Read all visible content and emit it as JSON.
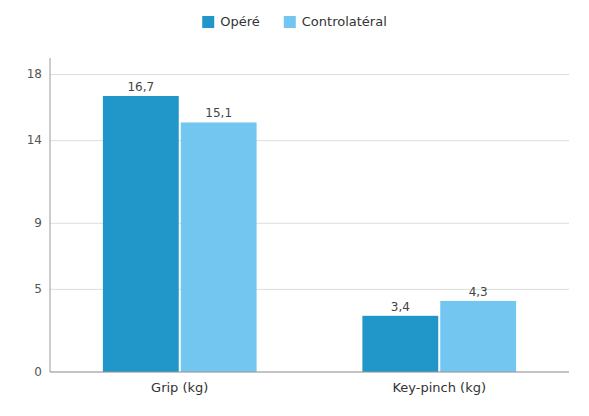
{
  "chart_data": {
    "type": "bar",
    "categories": [
      "Grip (kg)",
      "Key-pinch (kg)"
    ],
    "series": [
      {
        "name": "Opéré",
        "color": "#2196C8",
        "values": [
          16.7,
          3.4
        ],
        "value_labels": [
          "16,7",
          "3,4"
        ]
      },
      {
        "name": "Controlatéral",
        "color": "#73C6F0",
        "values": [
          15.1,
          4.3
        ],
        "value_labels": [
          "15,1",
          "4,3"
        ]
      }
    ],
    "ylim": [
      0,
      19
    ],
    "yticks": [
      0,
      5,
      9,
      14,
      18
    ],
    "grid": true,
    "legend": "top",
    "data_labels": true
  }
}
